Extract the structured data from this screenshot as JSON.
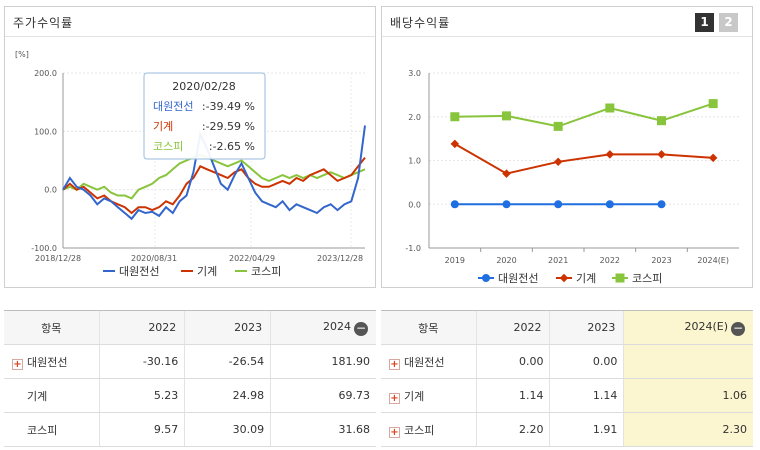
{
  "left_panel": {
    "title": "주가수익률",
    "unit": "[%]",
    "legend": [
      "대원전선",
      "기계",
      "코스피"
    ],
    "tooltip": {
      "date": "2020/02/28",
      "rows": [
        {
          "label": "대원전선",
          "value": ":-39.49 %"
        },
        {
          "label": "기계",
          "value": ":-29.59 %"
        },
        {
          "label": "코스피",
          "value": ":-2.65 %"
        }
      ]
    }
  },
  "right_panel": {
    "title": "배당수익률",
    "pager": [
      "1",
      "2"
    ],
    "legend": [
      "대원전선",
      "기계",
      "코스피"
    ]
  },
  "chart_data": [
    {
      "type": "line",
      "ylabel": "[%]",
      "ylim": [
        -100,
        200
      ],
      "y_ticks": [
        "200.0",
        "100.0",
        "0.0",
        "-100.0"
      ],
      "x_tick_labels": [
        "2018/12/28",
        "2020/08/31",
        "2022/04/29",
        "2023/12/28"
      ],
      "grid": true,
      "legend_position": "bottom",
      "colors": [
        "#3366cc",
        "#cc3300",
        "#88c43c"
      ],
      "series": [
        {
          "name": "대원전선",
          "values": [
            0,
            20,
            5,
            0,
            -10,
            -25,
            -15,
            -20,
            -30,
            -40,
            -50,
            -35,
            -40,
            -38,
            -45,
            -30,
            -40,
            -20,
            -10,
            30,
            95,
            70,
            40,
            10,
            0,
            25,
            45,
            20,
            -5,
            -20,
            -25,
            -30,
            -20,
            -35,
            -25,
            -30,
            -35,
            -40,
            -30,
            -25,
            -35,
            -25,
            -20,
            20,
            110
          ]
        },
        {
          "name": "기계",
          "values": [
            0,
            10,
            0,
            5,
            -5,
            -15,
            -10,
            -20,
            -25,
            -30,
            -40,
            -30,
            -30,
            -35,
            -30,
            -20,
            -25,
            -10,
            10,
            20,
            40,
            35,
            30,
            25,
            20,
            30,
            35,
            20,
            10,
            5,
            5,
            10,
            15,
            10,
            20,
            15,
            25,
            30,
            35,
            25,
            15,
            20,
            25,
            40,
            55
          ]
        },
        {
          "name": "코스피",
          "values": [
            0,
            5,
            0,
            10,
            5,
            0,
            5,
            -5,
            -10,
            -10,
            -15,
            0,
            5,
            10,
            20,
            25,
            35,
            45,
            50,
            55,
            60,
            55,
            50,
            45,
            40,
            45,
            50,
            40,
            30,
            20,
            15,
            20,
            25,
            20,
            25,
            20,
            25,
            20,
            25,
            30,
            25,
            20,
            25,
            30,
            35
          ]
        }
      ]
    },
    {
      "type": "line",
      "ylim": [
        -1.0,
        3.0
      ],
      "y_ticks": [
        "3.0",
        "2.0",
        "1.0",
        "0.0",
        "-1.0"
      ],
      "categories": [
        "2019",
        "2020",
        "2021",
        "2022",
        "2023",
        "2024(E)"
      ],
      "grid": true,
      "legend_position": "bottom",
      "colors": [
        "#1f6fe0",
        "#cc3300",
        "#88c43c"
      ],
      "series": [
        {
          "name": "대원전선",
          "values": [
            0.0,
            0.0,
            0.0,
            0.0,
            0.0,
            null
          ]
        },
        {
          "name": "기계",
          "values": [
            1.38,
            0.7,
            0.97,
            1.14,
            1.14,
            1.06
          ]
        },
        {
          "name": "코스피",
          "values": [
            2.0,
            2.02,
            1.78,
            2.2,
            1.91,
            2.3
          ]
        }
      ]
    }
  ],
  "left_table": {
    "header": [
      "항목",
      "2022",
      "2023",
      "2024"
    ],
    "rows": [
      {
        "name": "대원전선",
        "values": [
          "-30.16",
          "-26.54",
          "181.90"
        ],
        "expand": true
      },
      {
        "name": "기계",
        "values": [
          "5.23",
          "24.98",
          "69.73"
        ],
        "expand": false
      },
      {
        "name": "코스피",
        "values": [
          "9.57",
          "30.09",
          "31.68"
        ],
        "expand": false
      }
    ]
  },
  "right_table": {
    "header": [
      "항목",
      "2022",
      "2023",
      "2024(E)"
    ],
    "rows": [
      {
        "name": "대원전선",
        "values": [
          "0.00",
          "0.00",
          ""
        ],
        "expand": true
      },
      {
        "name": "기계",
        "values": [
          "1.14",
          "1.14",
          "1.06"
        ],
        "expand": true
      },
      {
        "name": "코스피",
        "values": [
          "2.20",
          "1.91",
          "2.30"
        ],
        "expand": true
      }
    ]
  }
}
